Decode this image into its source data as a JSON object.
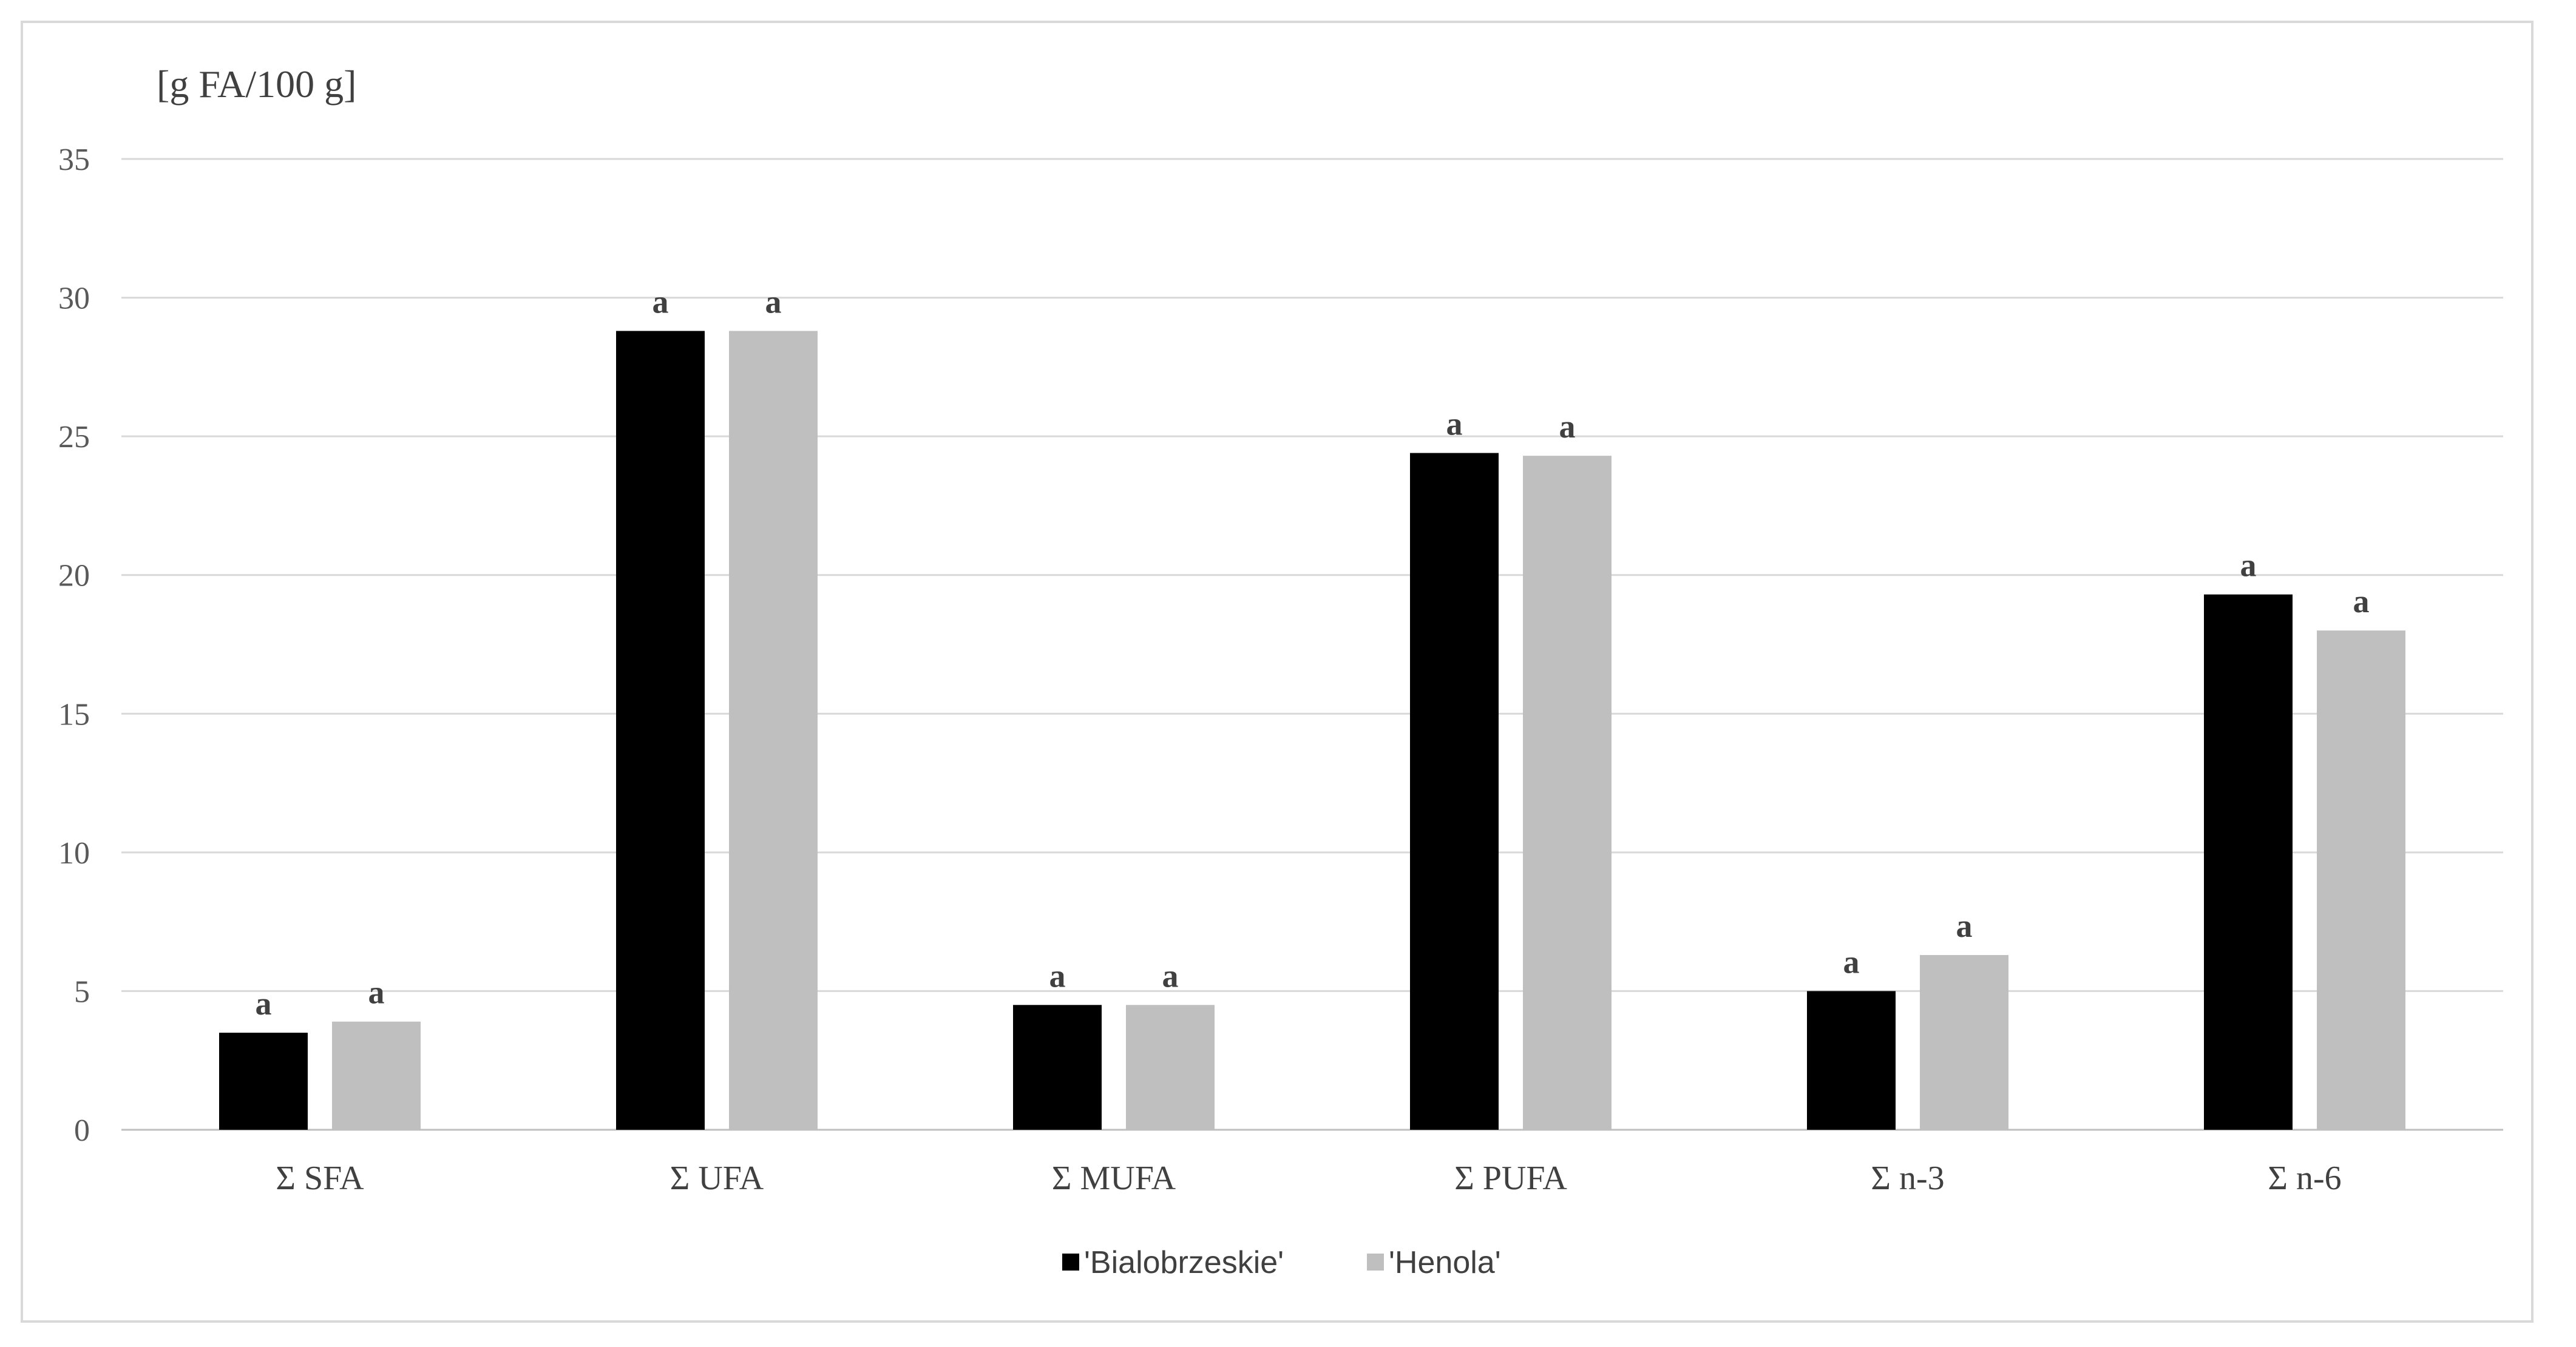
{
  "chart_data": {
    "type": "bar",
    "ylabel": "[g FA/100 g]",
    "ylim": [
      0,
      35
    ],
    "yticks": [
      0,
      5,
      10,
      15,
      20,
      25,
      30,
      35
    ],
    "grid": true,
    "legend_position": "bottom",
    "categories": [
      "Σ SFA",
      "Σ UFA",
      "Σ MUFA",
      "Σ PUFA",
      "Σ n-3",
      "Σ n-6"
    ],
    "series": [
      {
        "name": "'Bialobrzeskie'",
        "color": "#000000",
        "values": [
          3.5,
          28.8,
          4.5,
          24.4,
          5.0,
          19.3
        ],
        "labels": [
          "a",
          "a",
          "a",
          "a",
          "a",
          "a"
        ]
      },
      {
        "name": "'Henola'",
        "color": "#bfbfbf",
        "values": [
          3.9,
          28.8,
          4.5,
          24.3,
          6.3,
          18.0
        ],
        "labels": [
          "a",
          "a",
          "a",
          "a",
          "a",
          "a"
        ]
      }
    ]
  }
}
